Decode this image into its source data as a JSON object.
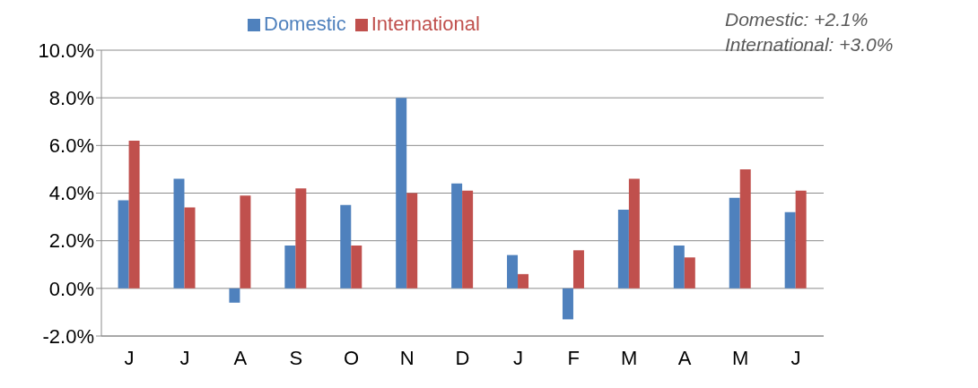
{
  "chart_data": {
    "type": "bar",
    "categories": [
      "J",
      "J",
      "A",
      "S",
      "O",
      "N",
      "D",
      "J",
      "F",
      "M",
      "A",
      "M",
      "J"
    ],
    "series": [
      {
        "name": "Domestic",
        "color": "#4f81bd",
        "values": [
          3.7,
          4.6,
          -0.6,
          1.8,
          3.5,
          8.0,
          4.4,
          1.4,
          -1.3,
          3.3,
          1.8,
          3.8,
          3.2
        ]
      },
      {
        "name": "International",
        "color": "#c0504d",
        "values": [
          6.2,
          3.4,
          3.9,
          4.2,
          1.8,
          4.0,
          4.1,
          0.6,
          1.6,
          4.6,
          1.3,
          5.0,
          4.1
        ]
      }
    ],
    "ylim": [
      -2,
      10
    ],
    "yticks": [
      {
        "value": -2,
        "label": "-2.0%"
      },
      {
        "value": 0,
        "label": "0.0%"
      },
      {
        "value": 2,
        "label": "2.0%"
      },
      {
        "value": 4,
        "label": "4.0%"
      },
      {
        "value": 6,
        "label": "6.0%"
      },
      {
        "value": 8,
        "label": "8.0%"
      },
      {
        "value": 10,
        "label": "10.0%"
      }
    ],
    "grid": "y",
    "legend": "top",
    "annotations": [
      "Domestic: +2.1%",
      "International: +3.0%"
    ]
  }
}
